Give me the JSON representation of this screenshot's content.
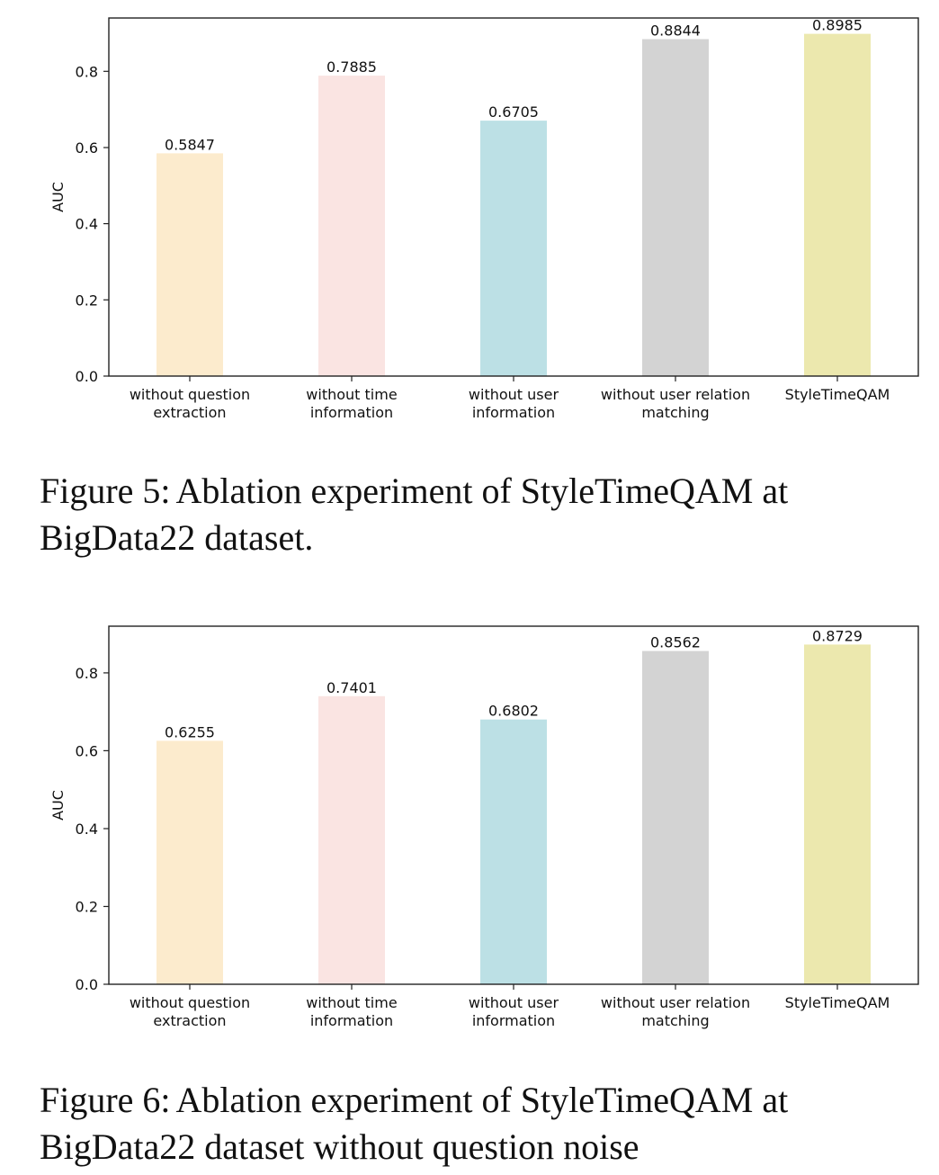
{
  "chart_data": [
    {
      "type": "bar",
      "categories": [
        [
          "without question",
          "extraction"
        ],
        [
          "without time",
          "information"
        ],
        [
          "without user",
          "information"
        ],
        [
          "without user relation",
          "matching"
        ],
        [
          "StyleTimeQAM"
        ]
      ],
      "values": [
        0.5847,
        0.7885,
        0.6705,
        0.8844,
        0.8985
      ],
      "value_labels": [
        "0.5847",
        "0.7885",
        "0.6705",
        "0.8844",
        "0.8985"
      ],
      "colors": [
        "#fcebcd",
        "#fae4e2",
        "#bce0e5",
        "#d3d3d3",
        "#ece8ae"
      ],
      "ylabel": "AUC",
      "xlabel": "",
      "ylim": [
        0,
        0.94
      ],
      "yticks": [
        0.0,
        0.2,
        0.4,
        0.6,
        0.8
      ],
      "ytick_labels": [
        "0.0",
        "0.2",
        "0.4",
        "0.6",
        "0.8"
      ],
      "grid": false,
      "legend": "none"
    },
    {
      "type": "bar",
      "categories": [
        [
          "without question",
          "extraction"
        ],
        [
          "without time",
          "information"
        ],
        [
          "without user",
          "information"
        ],
        [
          "without user relation",
          "matching"
        ],
        [
          "StyleTimeQAM"
        ]
      ],
      "values": [
        0.6255,
        0.7401,
        0.6802,
        0.8562,
        0.8729
      ],
      "value_labels": [
        "0.6255",
        "0.7401",
        "0.6802",
        "0.8562",
        "0.8729"
      ],
      "colors": [
        "#fcebcd",
        "#fae4e2",
        "#bce0e5",
        "#d3d3d3",
        "#ece8ae"
      ],
      "ylabel": "AUC",
      "xlabel": "",
      "ylim": [
        0,
        0.92
      ],
      "yticks": [
        0.0,
        0.2,
        0.4,
        0.6,
        0.8
      ],
      "ytick_labels": [
        "0.0",
        "0.2",
        "0.4",
        "0.6",
        "0.8"
      ],
      "grid": false,
      "legend": "none"
    }
  ],
  "captions": [
    {
      "label": "Figure 5:",
      "text": "Ablation experiment of StyleTimeQAM at BigData22 dataset."
    },
    {
      "label": "Figure 6:",
      "text": "Ablation experiment of StyleTimeQAM at BigData22 dataset without question noise"
    }
  ]
}
